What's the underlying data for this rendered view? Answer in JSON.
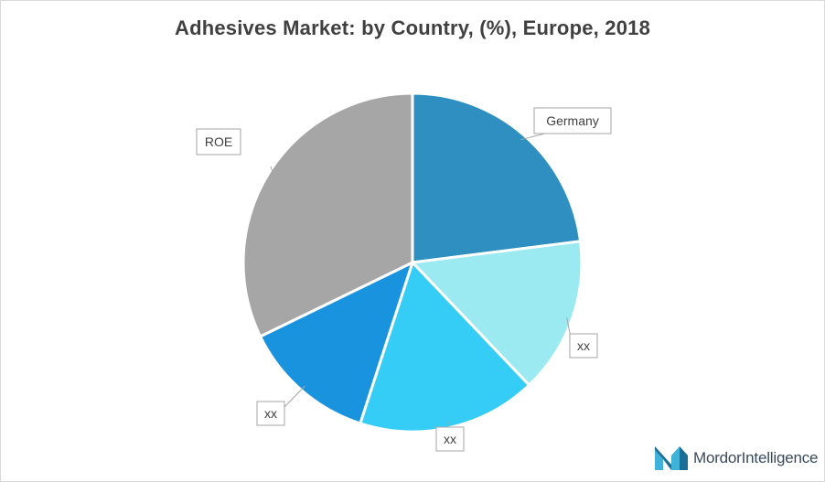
{
  "chart_data": {
    "type": "pie",
    "title": "Adhesives Market: by Country, (%), Europe, 2018",
    "slices": [
      {
        "label": "Germany",
        "value": 23.0,
        "color": "#2e8fc0"
      },
      {
        "label": "xx",
        "value": 14.9,
        "color": "#9beaf2"
      },
      {
        "label": "xx",
        "value": 17.1,
        "color": "#35cdf5"
      },
      {
        "label": "xx",
        "value": 12.8,
        "color": "#1a93df"
      },
      {
        "label": "ROE",
        "value": 32.2,
        "color": "#a6a6a6"
      }
    ],
    "start_angle_deg": 0,
    "direction": "clockwise",
    "legend": "none",
    "data_labels": "callout"
  },
  "branding": {
    "name_part1": "Mordor",
    "name_part2": "Intelligence",
    "colors": [
      "#3fb2d9",
      "#1b6e96"
    ]
  }
}
